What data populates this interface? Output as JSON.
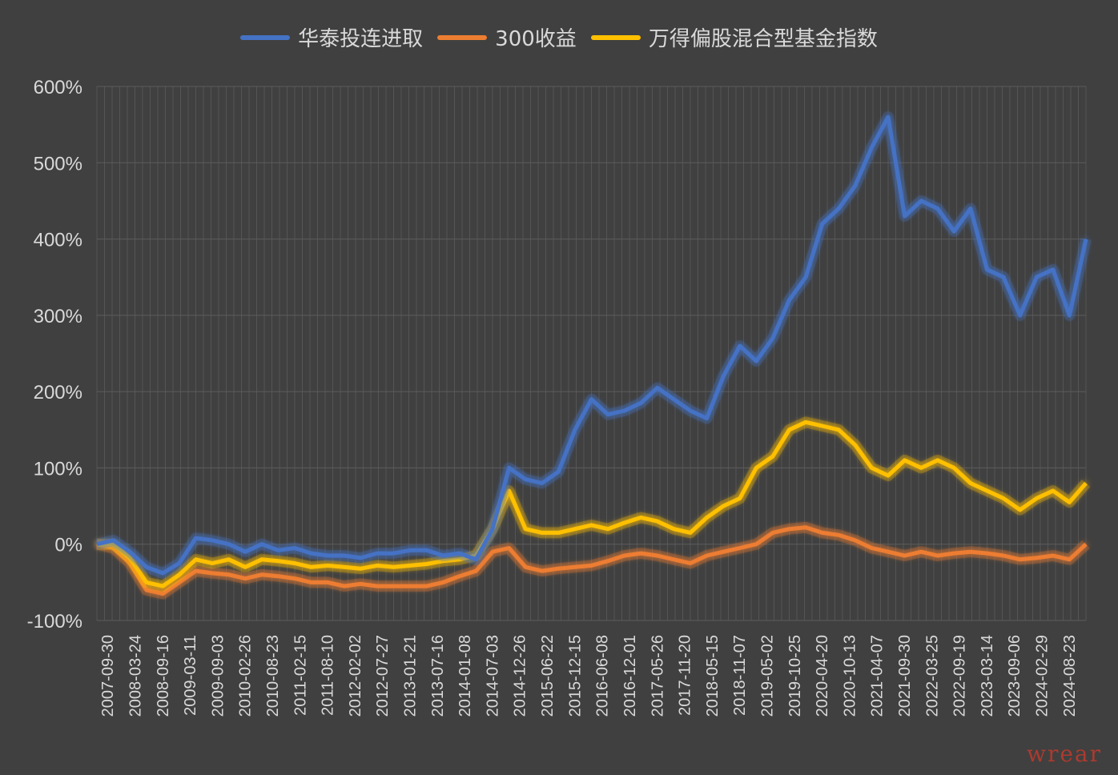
{
  "chart_data": {
    "type": "line",
    "yticks": [
      "600%",
      "500%",
      "400%",
      "300%",
      "200%",
      "100%",
      "0%",
      "-100%"
    ],
    "ylim": [
      -100,
      600
    ],
    "xticks": [
      "2007-09-30",
      "2008-03-24",
      "2008-09-16",
      "2009-03-11",
      "2009-09-03",
      "2010-02-26",
      "2010-08-23",
      "2011-02-15",
      "2011-08-10",
      "2012-02-02",
      "2012-07-27",
      "2013-01-21",
      "2013-07-16",
      "2014-01-08",
      "2014-07-03",
      "2014-12-26",
      "2015-06-22",
      "2015-12-15",
      "2016-06-08",
      "2016-12-01",
      "2017-05-26",
      "2017-11-20",
      "2018-05-15",
      "2018-11-07",
      "2019-05-02",
      "2019-10-25",
      "2020-04-20",
      "2020-10-13",
      "2021-04-07",
      "2021-09-30",
      "2022-03-25",
      "2022-09-19",
      "2023-03-14",
      "2023-09-06",
      "2024-02-29",
      "2024-08-23"
    ],
    "grid": true,
    "legend_position": "top",
    "series": [
      {
        "name": "华泰投连进取",
        "color": "#4472c4",
        "values": [
          0,
          5,
          -10,
          -30,
          -38,
          -25,
          8,
          5,
          0,
          -10,
          0,
          -8,
          -5,
          -12,
          -15,
          -15,
          -18,
          -12,
          -12,
          -8,
          -8,
          -15,
          -12,
          -20,
          20,
          100,
          85,
          80,
          95,
          150,
          190,
          170,
          175,
          185,
          205,
          190,
          175,
          165,
          220,
          260,
          240,
          270,
          320,
          350,
          420,
          440,
          470,
          520,
          560,
          430,
          450,
          440,
          410,
          440,
          360,
          350,
          300,
          350,
          360,
          300,
          400
        ]
      },
      {
        "name": "300收益",
        "color": "#ed7d31",
        "values": [
          0,
          -5,
          -25,
          -60,
          -65,
          -50,
          -35,
          -38,
          -40,
          -45,
          -40,
          -42,
          -45,
          -50,
          -50,
          -55,
          -52,
          -55,
          -55,
          -55,
          -55,
          -50,
          -42,
          -35,
          -10,
          -5,
          -30,
          -35,
          -32,
          -30,
          -28,
          -22,
          -15,
          -12,
          -15,
          -20,
          -25,
          -15,
          -10,
          -5,
          0,
          15,
          20,
          22,
          15,
          12,
          5,
          -5,
          -10,
          -15,
          -10,
          -15,
          -12,
          -10,
          -12,
          -15,
          -20,
          -18,
          -15,
          -20,
          0
        ]
      },
      {
        "name": "万得偏股混合型基金指数",
        "color": "#ffc000",
        "values": [
          0,
          0,
          -18,
          -50,
          -55,
          -40,
          -20,
          -25,
          -20,
          -30,
          -20,
          -22,
          -25,
          -30,
          -28,
          -30,
          -32,
          -28,
          -30,
          -28,
          -26,
          -22,
          -20,
          -15,
          20,
          70,
          20,
          15,
          15,
          20,
          25,
          20,
          28,
          35,
          30,
          20,
          15,
          35,
          50,
          60,
          100,
          115,
          150,
          160,
          155,
          150,
          130,
          100,
          90,
          110,
          100,
          110,
          100,
          80,
          70,
          60,
          45,
          60,
          70,
          55,
          80
        ]
      }
    ]
  },
  "watermark": "wrear"
}
